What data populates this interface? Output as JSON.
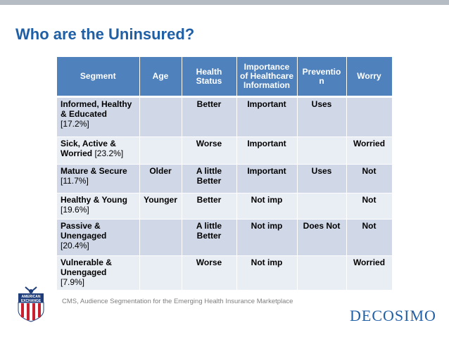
{
  "slide": {
    "title": "Who are the Uninsured?",
    "source": "CMS, Audience Segmentation for the Emerging Health Insurance Marketplace",
    "brand": "DECOSIMO",
    "left_logo_text": [
      "AMERICAN",
      "EXCHANGE"
    ]
  },
  "colors": {
    "title": "#1f5fa6",
    "header_bg": "#4f81bd",
    "row_odd": "#d0d8e8",
    "row_even": "#e9edf4",
    "top_bar": "#b5bcc4"
  },
  "table": {
    "headers": [
      "Segment",
      "Age",
      "Health Status",
      "Importance of Healthcare Information",
      "Preventio n",
      "Worry"
    ],
    "rows": [
      {
        "segment": "Informed, Healthy & Educated",
        "pct": "[17.2%]",
        "age": "",
        "health": "Better",
        "importance": "Important",
        "prevention": "Uses",
        "worry": ""
      },
      {
        "segment": "Sick, Active & Worried",
        "pct": "[23.2%]",
        "age": "",
        "health": "Worse",
        "importance": "Important",
        "prevention": "",
        "worry": "Worried"
      },
      {
        "segment": "Mature & Secure",
        "pct": "[11.7%]",
        "age": "Older",
        "health": "A little Better",
        "importance": "Important",
        "prevention": "Uses",
        "worry": "Not"
      },
      {
        "segment": "Healthy & Young",
        "pct": "[19.6%]",
        "age": "Younger",
        "health": "Better",
        "importance": "Not imp",
        "prevention": "",
        "worry": "Not"
      },
      {
        "segment": "Passive & Unengaged",
        "pct": "[20.4%]",
        "age": "",
        "health": "A little Better",
        "importance": "Not imp",
        "prevention": "Does Not",
        "worry": "Not"
      },
      {
        "segment": "Vulnerable & Unengaged",
        "pct": "[7.9%]",
        "age": "",
        "health": "Worse",
        "importance": "Not imp",
        "prevention": "",
        "worry": "Worried"
      }
    ]
  }
}
